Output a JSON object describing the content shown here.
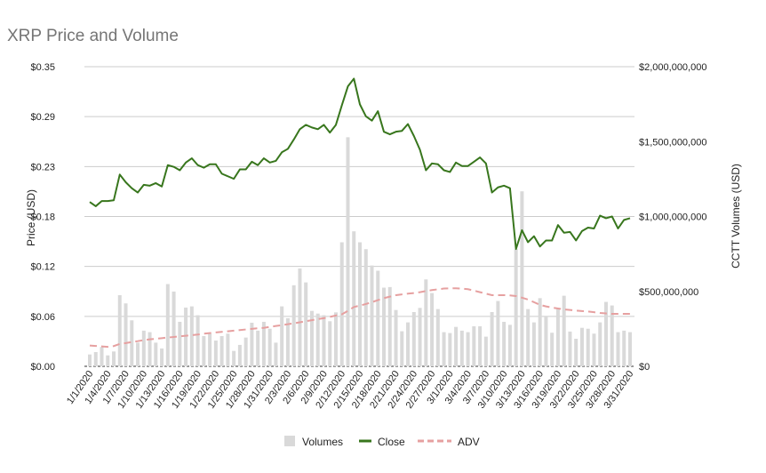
{
  "chart_data": {
    "type": "combo",
    "title": "XRP Price and Volume",
    "ylabel_left": "Price (USD)",
    "ylabel_right": "CCTT Volumes (USD)",
    "ylim_left": [
      0,
      0.35
    ],
    "ylim_right": [
      0,
      2000000000
    ],
    "yticks_left": [
      "$0.00",
      "$0.06",
      "$0.12",
      "$0.18",
      "$0.23",
      "$0.29",
      "$0.35"
    ],
    "yticks_right": [
      "$0",
      "$500,000,000",
      "$1,000,000,000",
      "$1,500,000,000",
      "$2,000,000,000"
    ],
    "xtick_labels": [
      "1/1/2020",
      "1/4/2020",
      "1/7/2020",
      "1/10/2020",
      "1/13/2020",
      "1/16/2020",
      "1/19/2020",
      "1/22/2020",
      "1/25/2020",
      "1/28/2020",
      "1/31/2020",
      "2/3/2020",
      "2/6/2020",
      "2/9/2020",
      "2/12/2020",
      "2/15/2020",
      "2/18/2020",
      "2/21/2020",
      "2/24/2020",
      "2/27/2020",
      "3/1/2020",
      "3/4/2020",
      "3/7/2020",
      "3/10/2020",
      "3/13/2020",
      "3/16/2020",
      "3/19/2020",
      "3/22/2020",
      "3/25/2020",
      "3/28/2020",
      "3/31/2020"
    ],
    "x_range": [
      "1/1/2020",
      "3/31/2020"
    ],
    "grid": true,
    "legend_position": "bottom",
    "series": [
      {
        "name": "Volumes",
        "type": "bar",
        "axis": "right",
        "color": "#d9d9d9",
        "values": [
          79000000,
          95000000,
          129000000,
          73000000,
          99000000,
          475000000,
          420000000,
          307000000,
          158000000,
          238000000,
          228000000,
          158000000,
          119000000,
          549000000,
          499000000,
          297000000,
          392000000,
          400000000,
          341000000,
          202000000,
          218000000,
          172000000,
          202000000,
          218000000,
          103000000,
          143000000,
          192000000,
          291000000,
          238000000,
          297000000,
          251000000,
          158000000,
          400000000,
          321000000,
          541000000,
          653000000,
          560000000,
          370000000,
          352000000,
          341000000,
          301000000,
          360000000,
          828000000,
          1529000000,
          901000000,
          828000000,
          782000000,
          673000000,
          638000000,
          525000000,
          529000000,
          376000000,
          234000000,
          293000000,
          362000000,
          390000000,
          580000000,
          489000000,
          382000000,
          228000000,
          222000000,
          263000000,
          238000000,
          228000000,
          267000000,
          267000000,
          198000000,
          362000000,
          436000000,
          297000000,
          277000000,
          782000000,
          1168000000,
          382000000,
          293000000,
          455000000,
          331000000,
          224000000,
          382000000,
          471000000,
          232000000,
          184000000,
          257000000,
          251000000,
          218000000,
          293000000,
          430000000,
          406000000,
          228000000,
          238000000,
          228000000
        ]
      },
      {
        "name": "Close",
        "type": "line",
        "axis": "left",
        "color": "#38761d",
        "values": [
          0.192,
          0.187,
          0.193,
          0.193,
          0.194,
          0.224,
          0.215,
          0.208,
          0.203,
          0.212,
          0.211,
          0.214,
          0.21,
          0.235,
          0.233,
          0.229,
          0.238,
          0.243,
          0.235,
          0.232,
          0.236,
          0.236,
          0.225,
          0.222,
          0.219,
          0.23,
          0.23,
          0.239,
          0.235,
          0.243,
          0.238,
          0.24,
          0.25,
          0.254,
          0.265,
          0.277,
          0.282,
          0.279,
          0.277,
          0.282,
          0.273,
          0.282,
          0.305,
          0.327,
          0.336,
          0.306,
          0.292,
          0.287,
          0.298,
          0.274,
          0.271,
          0.274,
          0.275,
          0.283,
          0.269,
          0.253,
          0.229,
          0.237,
          0.236,
          0.229,
          0.227,
          0.238,
          0.234,
          0.234,
          0.239,
          0.244,
          0.237,
          0.203,
          0.209,
          0.211,
          0.208,
          0.137,
          0.159,
          0.145,
          0.152,
          0.14,
          0.147,
          0.147,
          0.165,
          0.156,
          0.157,
          0.147,
          0.158,
          0.162,
          0.161,
          0.176,
          0.173,
          0.175,
          0.161,
          0.171,
          0.173
        ]
      },
      {
        "name": "ADV",
        "type": "line",
        "style": "dashed",
        "axis": "right",
        "color": "#e06666",
        "values": [
          139000000,
          136000000,
          133000000,
          130000000,
          135000000,
          149000000,
          155000000,
          162000000,
          168000000,
          175000000,
          180000000,
          184000000,
          188000000,
          192000000,
          196000000,
          200000000,
          204000000,
          208000000,
          212000000,
          218000000,
          222000000,
          226000000,
          230000000,
          234000000,
          238000000,
          242000000,
          246000000,
          250000000,
          254000000,
          257000000,
          263000000,
          269000000,
          275000000,
          281000000,
          287000000,
          294000000,
          301000000,
          308000000,
          315000000,
          321000000,
          330000000,
          339000000,
          347000000,
          370000000,
          396000000,
          405000000,
          416000000,
          428000000,
          442000000,
          455000000,
          465000000,
          475000000,
          480000000,
          485000000,
          489000000,
          495000000,
          502000000,
          509000000,
          514000000,
          519000000,
          520000000,
          521000000,
          518000000,
          515000000,
          505000000,
          495000000,
          485000000,
          475000000,
          475000000,
          475000000,
          473000000,
          469000000,
          458000000,
          446000000,
          428000000,
          410000000,
          400000000,
          392000000,
          386000000,
          380000000,
          376000000,
          372000000,
          369000000,
          366000000,
          361000000,
          356000000,
          353000000,
          350000000,
          350000000,
          350000000,
          350000000
        ]
      }
    ]
  }
}
